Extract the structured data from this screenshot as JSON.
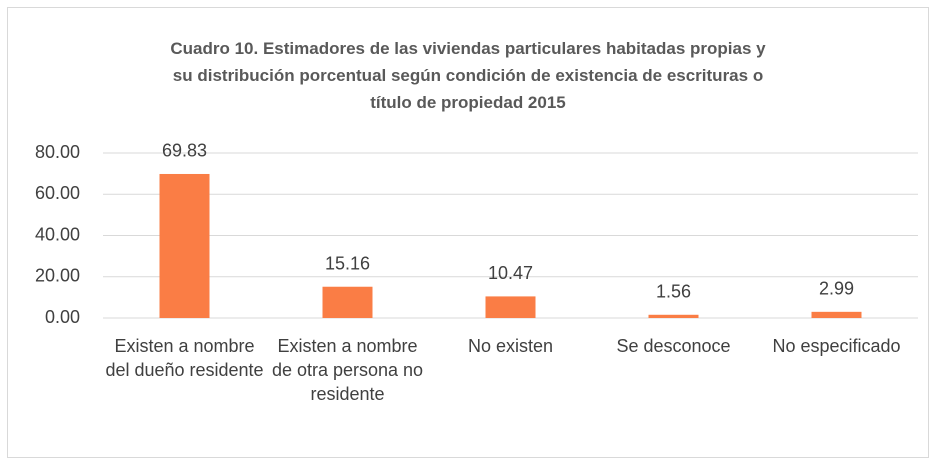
{
  "chart_data": {
    "type": "bar",
    "title": "Cuadro 10. Estimadores de las viviendas particulares habitadas propias y su distribución porcentual según condición de existencia de escrituras o título de propiedad 2015",
    "categories": [
      "Existen a nombre del dueño residente",
      "Existen a nombre de otra persona no residente",
      "No existen",
      "Se desconoce",
      "No especificado"
    ],
    "values": [
      69.83,
      15.16,
      10.47,
      1.56,
      2.99
    ],
    "color": "#fa7d45",
    "ylim": [
      0,
      80
    ],
    "yticks": [
      {
        "value": 0,
        "label": "0.00"
      },
      {
        "value": 20,
        "label": "20.00"
      },
      {
        "value": 40,
        "label": "40.00"
      },
      {
        "value": 60,
        "label": "60.00"
      },
      {
        "value": 80,
        "label": "80.00"
      }
    ],
    "grid": true
  }
}
